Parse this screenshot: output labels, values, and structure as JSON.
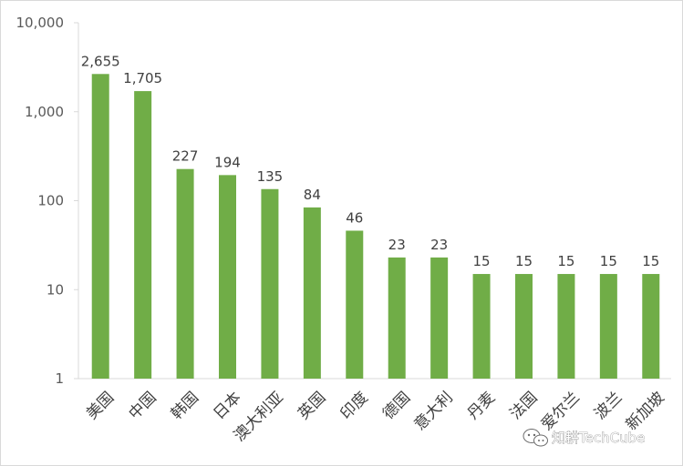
{
  "chart_data": {
    "type": "bar",
    "title": "",
    "xlabel": "",
    "ylabel": "",
    "yscale": "log",
    "ylim": [
      1,
      10000
    ],
    "yticks": [
      1,
      10,
      100,
      1000,
      10000
    ],
    "ytick_labels": [
      "1",
      "10",
      "100",
      "1,000",
      "10,000"
    ],
    "grid": false,
    "bar_color": "#70ad47",
    "categories": [
      "美国",
      "中国",
      "韩国",
      "日本",
      "澳大利亚",
      "英国",
      "印度",
      "德国",
      "意大利",
      "丹麦",
      "法国",
      "爱尔兰",
      "波兰",
      "新加坡"
    ],
    "values": [
      2655,
      1705,
      227,
      194,
      135,
      84,
      46,
      23,
      23,
      15,
      15,
      15,
      15,
      15
    ],
    "data_labels": [
      "2,655",
      "1,705",
      "227",
      "194",
      "135",
      "84",
      "46",
      "23",
      "23",
      "15",
      "15",
      "15",
      "15",
      "15"
    ]
  },
  "watermark": {
    "text": "知耕TechCube",
    "icon": "wechat-icon"
  }
}
